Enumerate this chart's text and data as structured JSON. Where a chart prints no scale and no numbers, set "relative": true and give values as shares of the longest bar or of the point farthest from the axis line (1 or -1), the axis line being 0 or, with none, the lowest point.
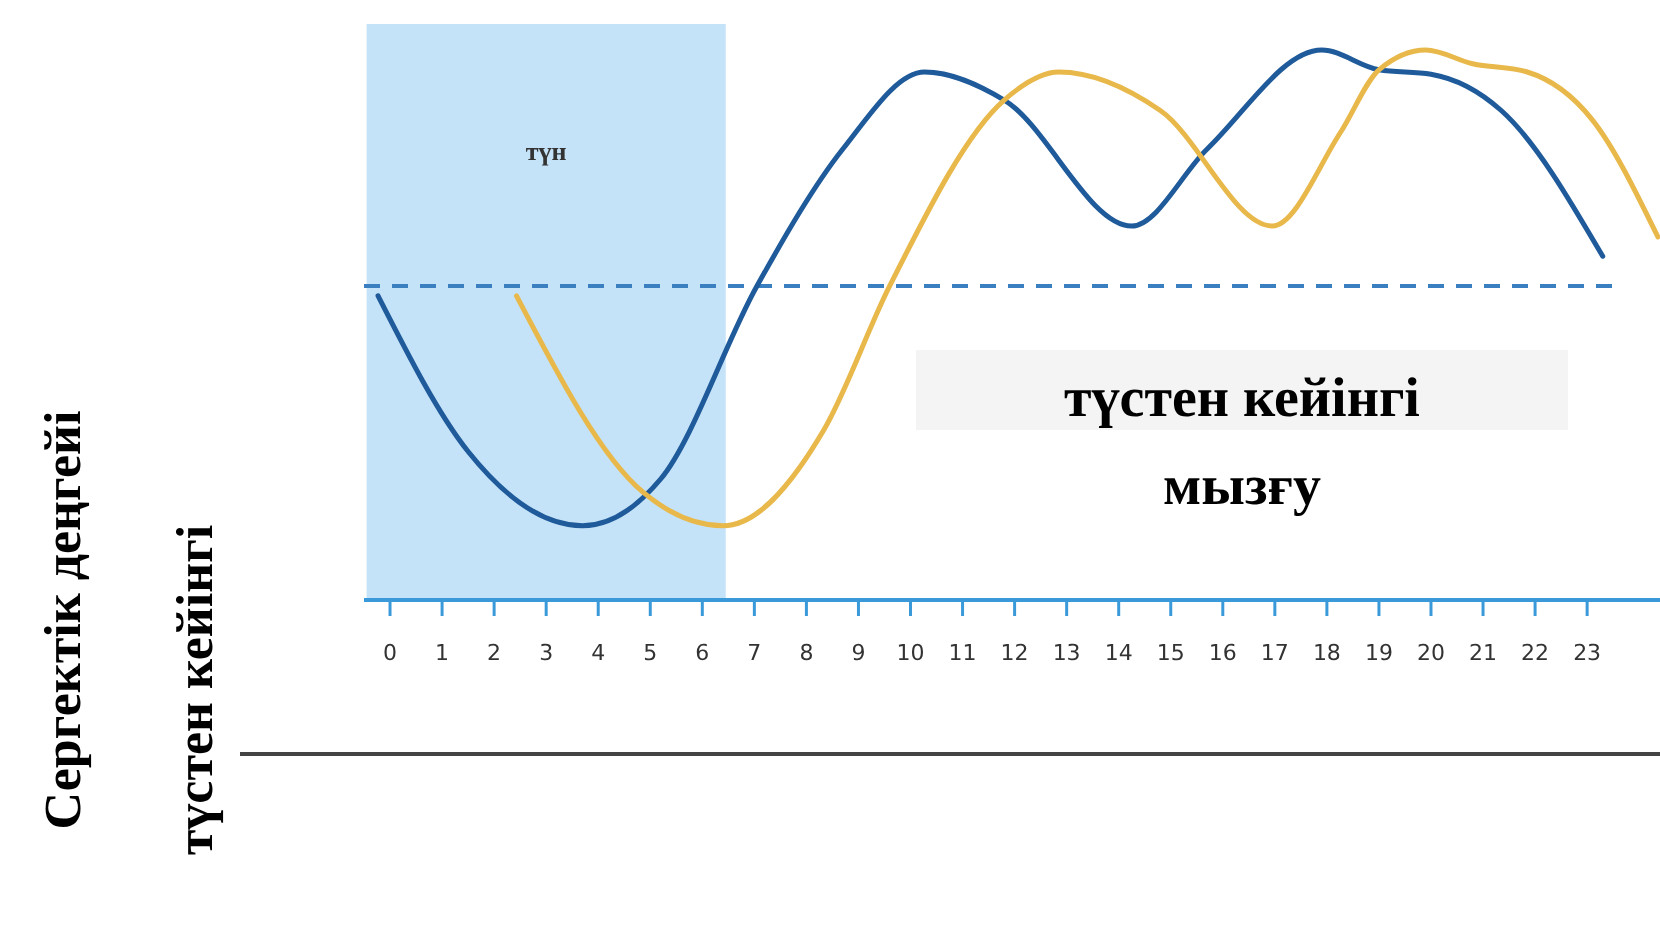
{
  "chart_data": {
    "type": "line",
    "relative": true,
    "xlim": [
      -0.5,
      24.4
    ],
    "xticks": [
      0,
      1,
      2,
      3,
      4,
      5,
      6,
      7,
      8,
      9,
      10,
      11,
      12,
      13,
      14,
      15,
      16,
      17,
      18,
      19,
      20,
      21,
      22,
      23
    ],
    "series": [
      {
        "color": "#1f5a9a",
        "x": [
          -0.23,
          1.5,
          3.7,
          5.2,
          7.05,
          8.7,
          10.27,
          11.8,
          14.25,
          15.7,
          17.9,
          19.0,
          20.0,
          21.35,
          23.3
        ],
        "values": [
          0.553,
          0.27,
          0.135,
          0.22,
          0.571,
          0.82,
          0.96,
          0.909,
          0.68,
          0.82,
          1,
          0.964,
          0.956,
          0.89,
          0.625
        ]
      },
      {
        "color": "#e8b84a",
        "x": [
          2.43,
          4.86,
          6.4,
          8.34,
          9.6,
          11.8,
          12.85,
          14.8,
          16.95,
          18.26,
          19.0,
          19.9,
          20.8,
          21.85,
          23.1,
          24.36
        ],
        "values": [
          0.553,
          0.196,
          0.135,
          0.31,
          0.571,
          0.909,
          0.96,
          0.89,
          0.68,
          0.85,
          0.964,
          1,
          0.975,
          0.96,
          0.873,
          0.66
        ]
      }
    ],
    "ref_lines": [
      {
        "axis": "y",
        "value": 0.571,
        "color": "#3a7fbf",
        "line_style": "dashed"
      }
    ],
    "bands": [
      {
        "axis": "x",
        "from": -0.45,
        "to": 6.45,
        "label": "түн",
        "color": "#c5e3f8"
      }
    ],
    "annotations": [
      "түстен кейінгі мызғу",
      "түстен кейінгі",
      "Сергектік деңгейі"
    ],
    "grid": false
  }
}
